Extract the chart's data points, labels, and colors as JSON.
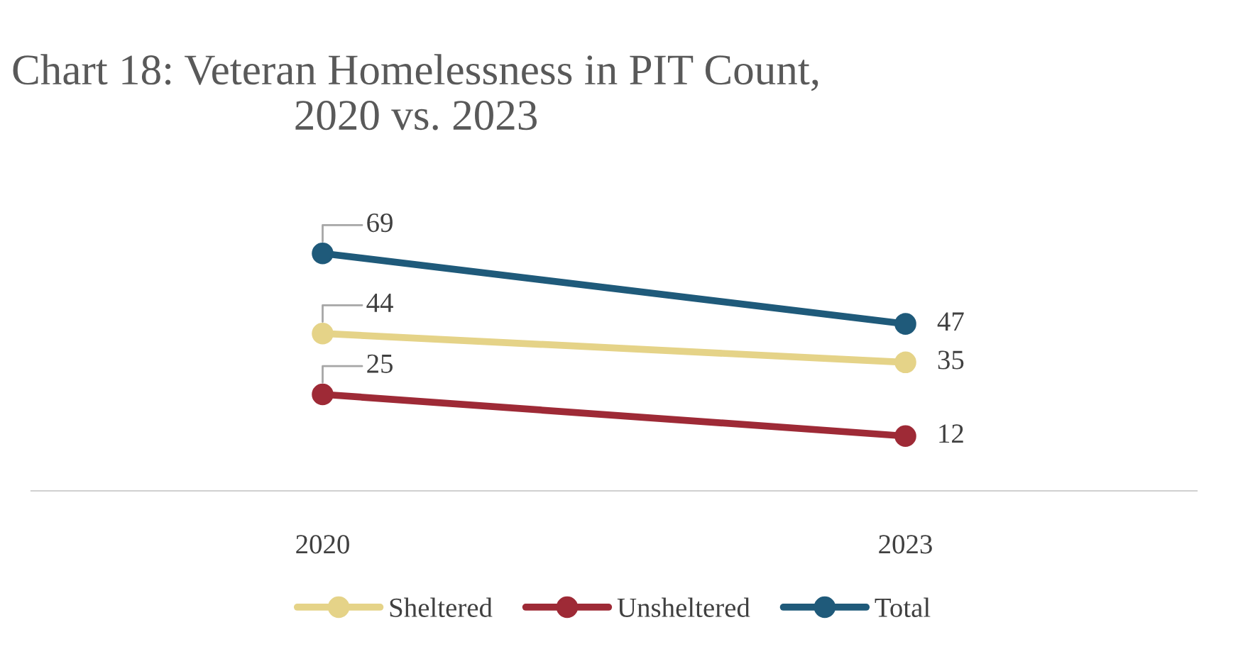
{
  "chart_data": {
    "type": "line",
    "title": "Chart 18: Veteran Homelessness in PIT Count,\n2020 vs. 2023",
    "categories": [
      "2020",
      "2023"
    ],
    "series": [
      {
        "name": "Sheltered",
        "color": "#e5d388",
        "values": [
          44,
          35
        ]
      },
      {
        "name": "Unsheltered",
        "color": "#9e2a36",
        "values": [
          25,
          12
        ]
      },
      {
        "name": "Total",
        "color": "#1f5a7a",
        "values": [
          69,
          47
        ]
      }
    ],
    "data_labels": true,
    "marker": "circle",
    "legend": "bottom",
    "grid": false
  }
}
